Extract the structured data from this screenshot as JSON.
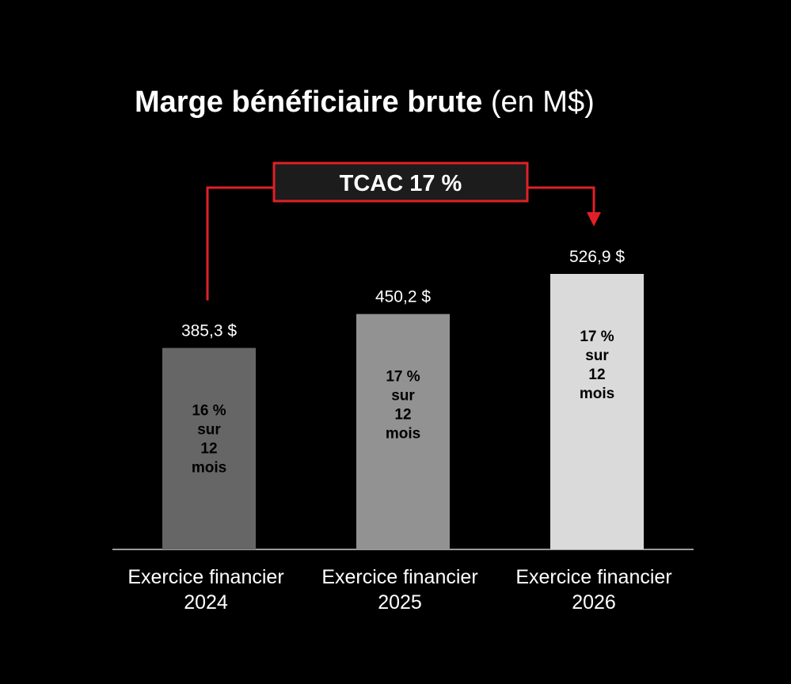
{
  "title": {
    "main": "Marge bénéficiaire brute",
    "sub": "(en M$)"
  },
  "colors": {
    "background": "#000000",
    "accent": "#e02027",
    "baseline": "#9a9a9a",
    "text": "#ffffff",
    "inner_text": "#000000"
  },
  "chart_data": {
    "type": "bar",
    "title": "Marge bénéficiaire brute (en M$)",
    "categories": [
      [
        "Exercice financier",
        "2024"
      ],
      [
        "Exercice financier",
        "2025"
      ],
      [
        "Exercice financier",
        "2026"
      ]
    ],
    "values": [
      385.3,
      450.2,
      526.9
    ],
    "value_labels": [
      "385,3 $",
      "450,2 $",
      "526,9 $"
    ],
    "bar_colors": [
      "#666666",
      "#929292",
      "#dadada"
    ],
    "inner_labels": [
      [
        "16 %",
        "sur",
        "12",
        "mois"
      ],
      [
        "17 %",
        "sur",
        "12",
        "mois"
      ],
      [
        "17 %",
        "sur",
        "12",
        "mois"
      ]
    ],
    "annotation": {
      "label": "TCAC 17 %",
      "from_index": 0,
      "to_index": 2
    },
    "ylim": [
      0,
      600
    ],
    "grid": false,
    "legend": "none"
  }
}
